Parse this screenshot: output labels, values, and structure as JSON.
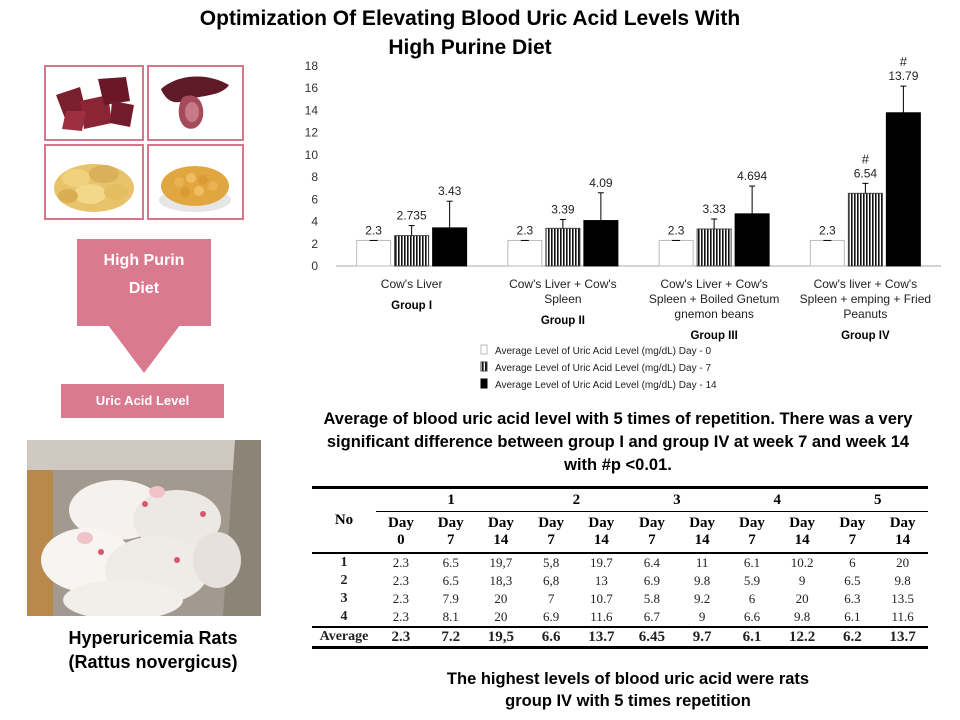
{
  "title_line1": "Optimization Of Elevating Blood Uric Acid Levels With",
  "title_line2": "High Purine Diet",
  "flow": {
    "diet_line1": "High Purin",
    "diet_line2": "Diet",
    "result": "Uric Acid Level"
  },
  "rats_caption_line1": "Hyperuricemia  Rats",
  "rats_caption_line2": "(Rattus novergicus)",
  "chart_data": {
    "type": "bar",
    "ylim": [
      0,
      18
    ],
    "yticks": [
      "0",
      "2",
      "4",
      "6",
      "8",
      "10",
      "12",
      "14",
      "16",
      "18"
    ],
    "categories": [
      {
        "label_lines": [
          "Cow's Liver"
        ],
        "group": "Group I"
      },
      {
        "label_lines": [
          "Cow's Liver + Cow's",
          "Spleen"
        ],
        "group": "Group II"
      },
      {
        "label_lines": [
          "Cow's Liver + Cow's",
          "Spleen + Boiled Gnetum",
          "gnemon beans"
        ],
        "group": "Group III"
      },
      {
        "label_lines": [
          "Cow's liver + Cow's",
          "Spleen + emping + Fried",
          "Peanuts"
        ],
        "group": "Group IV"
      }
    ],
    "series": [
      {
        "name": "Average Level of Uric Acid Level (mg/dL) Day - 0",
        "values": [
          2.3,
          2.3,
          2.3,
          2.3
        ],
        "labels": [
          "2.3",
          "2.3",
          "2.3",
          "2.3"
        ],
        "err": [
          0,
          0,
          0,
          0
        ]
      },
      {
        "name": "Average Level of Uric Acid Level (mg/dL) Day - 7",
        "values": [
          2.735,
          3.39,
          3.33,
          6.54
        ],
        "labels": [
          "2.735",
          "3.39",
          "3.33",
          "6.54"
        ],
        "err": [
          0.9,
          0.8,
          0.9,
          0.9
        ]
      },
      {
        "name": "Average Level of Uric Acid Level (mg/dL) Day - 14",
        "values": [
          3.43,
          4.09,
          4.694,
          13.79
        ],
        "labels": [
          "3.43",
          "4.09",
          "4.694",
          "13.79"
        ],
        "err": [
          2.4,
          2.5,
          2.5,
          2.4
        ]
      }
    ],
    "significance_marker": "#"
  },
  "chart_caption": "Average of blood uric acid level with 5 times of repetition. There was a very significant difference between group I and group IV at week 7 and week 14 with #p <0.01.",
  "table": {
    "no_header": "No",
    "groups": [
      "1",
      "2",
      "3",
      "4",
      "5"
    ],
    "day_headers": [
      [
        "Day",
        "0"
      ],
      [
        "Day",
        "7"
      ],
      [
        "Day",
        "14"
      ],
      [
        "Day",
        "7"
      ],
      [
        "Day",
        "14"
      ],
      [
        "Day",
        "7"
      ],
      [
        "Day",
        "14"
      ],
      [
        "Day",
        "7"
      ],
      [
        "Day",
        "14"
      ],
      [
        "Day",
        "7"
      ],
      [
        "Day",
        "14"
      ]
    ],
    "rows": [
      {
        "no": "1",
        "cells": [
          "2.3",
          "6.5",
          "19,7",
          "5,8",
          "19.7",
          "6.4",
          "11",
          "6.1",
          "10.2",
          "6",
          "20"
        ]
      },
      {
        "no": "2",
        "cells": [
          "2.3",
          "6.5",
          "18,3",
          "6,8",
          "13",
          "6.9",
          "9.8",
          "5.9",
          "9",
          "6.5",
          "9.8"
        ]
      },
      {
        "no": "3",
        "cells": [
          "2.3",
          "7.9",
          "20",
          "7",
          "10.7",
          "5.8",
          "9.2",
          "6",
          "20",
          "6.3",
          "13.5"
        ]
      },
      {
        "no": "4",
        "cells": [
          "2.3",
          "8.1",
          "20",
          "6.9",
          "11.6",
          "6.7",
          "9",
          "6.6",
          "9.8",
          "6.1",
          "11.6"
        ]
      }
    ],
    "average": {
      "no": "Average",
      "cells": [
        "2.3",
        "7.2",
        "19,5",
        "6.6",
        "13.7",
        "6.45",
        "9.7",
        "6.1",
        "12.2",
        "6.2",
        "13.7"
      ]
    }
  },
  "bottom_caption_line1": "The highest levels of blood uric acid were rats",
  "bottom_caption_line2": "group IV with 5 times repetition"
}
